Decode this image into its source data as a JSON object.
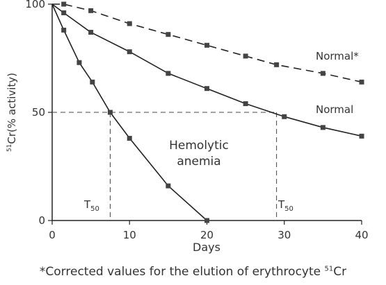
{
  "chart_data": {
    "type": "line",
    "xlabel": "Days",
    "ylabel_iso": "51",
    "ylabel_text": "Cr(% activity)",
    "xlim": [
      0,
      40
    ],
    "ylim": [
      0,
      100
    ],
    "x_ticks": [
      0,
      10,
      20,
      30,
      40
    ],
    "y_ticks": [
      0,
      50,
      100
    ],
    "grid": false,
    "series": [
      {
        "name": "Normal*",
        "style": "dashed",
        "x": [
          0,
          1.5,
          5,
          10,
          15,
          20,
          25,
          29,
          35,
          40
        ],
        "y": [
          100,
          100,
          97,
          91,
          86,
          81,
          76,
          72,
          68,
          64
        ]
      },
      {
        "name": "Normal",
        "style": "solid",
        "x": [
          0,
          1.5,
          5,
          10,
          15,
          20,
          25,
          30,
          35,
          40
        ],
        "y": [
          100,
          96,
          87,
          78,
          68,
          61,
          54,
          48,
          43,
          39
        ]
      },
      {
        "name": "Hemolytic anemia",
        "style": "solid",
        "x": [
          0,
          1.5,
          3.5,
          5.2,
          7.5,
          10,
          15,
          20
        ],
        "y": [
          100,
          88,
          73,
          64,
          50,
          38,
          16,
          0
        ]
      }
    ],
    "annotations": {
      "normal_star": "Normal*",
      "normal": "Normal",
      "hemolytic_line1": "Hemolytic",
      "hemolytic_line2": "anemia",
      "t50": "T",
      "t50_sub": "50",
      "t50_hemolytic_day": 7.5,
      "t50_normal_day": 29
    },
    "footnote_prefix": "*Corrected values for the elution of erythrocyte ",
    "footnote_iso": "51",
    "footnote_suffix": "Cr"
  },
  "colors": {
    "line": "#222222",
    "marker": "#444444",
    "text": "#333333"
  }
}
